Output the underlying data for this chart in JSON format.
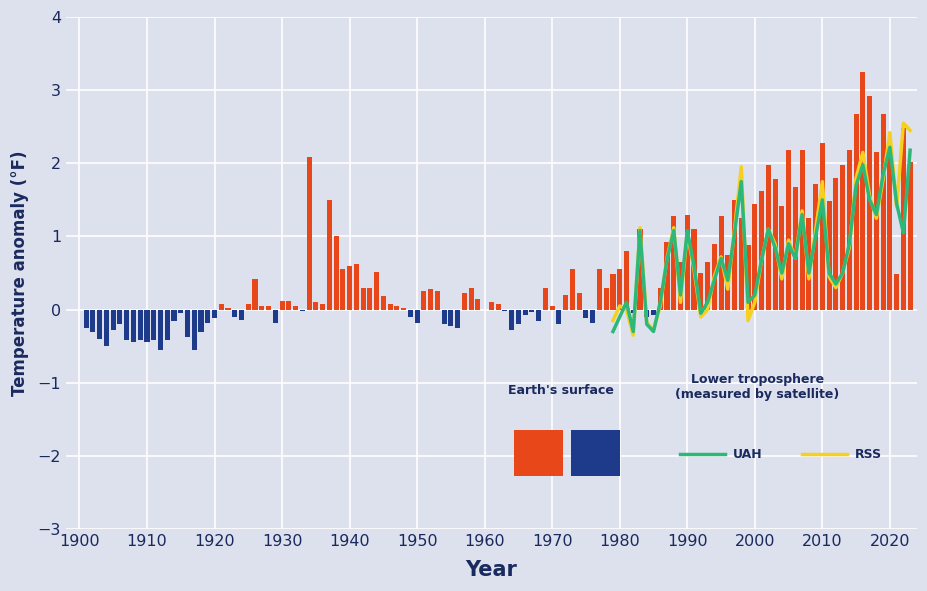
{
  "xlabel": "Year",
  "ylabel": "Temperature anomaly (°F)",
  "bg_color": "#dde1ed",
  "grid_color": "#ffffff",
  "text_color": "#1a2a5e",
  "ylim": [
    -3,
    4
  ],
  "yticks": [
    -3,
    -2,
    -1,
    0,
    1,
    2,
    3,
    4
  ],
  "xlim": [
    1898,
    2024
  ],
  "xticks": [
    1900,
    1910,
    1920,
    1930,
    1940,
    1950,
    1960,
    1970,
    1980,
    1990,
    2000,
    2010,
    2020
  ],
  "surface_years": [
    1901,
    1902,
    1903,
    1904,
    1905,
    1906,
    1907,
    1908,
    1909,
    1910,
    1911,
    1912,
    1913,
    1914,
    1915,
    1916,
    1917,
    1918,
    1919,
    1920,
    1921,
    1922,
    1923,
    1924,
    1925,
    1926,
    1927,
    1928,
    1929,
    1930,
    1931,
    1932,
    1933,
    1934,
    1935,
    1936,
    1937,
    1938,
    1939,
    1940,
    1941,
    1942,
    1943,
    1944,
    1945,
    1946,
    1947,
    1948,
    1949,
    1950,
    1951,
    1952,
    1953,
    1954,
    1955,
    1956,
    1957,
    1958,
    1959,
    1960,
    1961,
    1962,
    1963,
    1964,
    1965,
    1966,
    1967,
    1968,
    1969,
    1970,
    1971,
    1972,
    1973,
    1974,
    1975,
    1976,
    1977,
    1978,
    1979,
    1980,
    1981,
    1982,
    1983,
    1984,
    1985,
    1986,
    1987,
    1988,
    1989,
    1990,
    1991,
    1992,
    1993,
    1994,
    1995,
    1996,
    1997,
    1998,
    1999,
    2000,
    2001,
    2002,
    2003,
    2004,
    2005,
    2006,
    2007,
    2008,
    2009,
    2010,
    2011,
    2012,
    2013,
    2014,
    2015,
    2016,
    2017,
    2018,
    2019,
    2020,
    2021,
    2022,
    2023
  ],
  "surface_values": [
    -0.25,
    -0.3,
    -0.4,
    -0.5,
    -0.28,
    -0.2,
    -0.42,
    -0.45,
    -0.42,
    -0.45,
    -0.42,
    -0.55,
    -0.42,
    -0.15,
    -0.05,
    -0.38,
    -0.55,
    -0.3,
    -0.18,
    -0.12,
    0.08,
    0.02,
    -0.1,
    -0.14,
    0.07,
    0.42,
    0.05,
    0.05,
    -0.18,
    0.12,
    0.12,
    0.05,
    -0.02,
    2.08,
    0.1,
    0.08,
    1.5,
    1.0,
    0.55,
    0.6,
    0.62,
    0.3,
    0.3,
    0.52,
    0.18,
    0.08,
    0.05,
    0.02,
    -0.1,
    -0.18,
    0.25,
    0.28,
    0.26,
    -0.2,
    -0.22,
    -0.25,
    0.22,
    0.3,
    0.15,
    0.0,
    0.1,
    0.07,
    -0.02,
    -0.28,
    -0.2,
    -0.08,
    -0.04,
    -0.15,
    0.3,
    0.05,
    -0.2,
    0.2,
    0.55,
    0.22,
    -0.12,
    -0.18,
    0.55,
    0.3,
    0.48,
    0.55,
    0.8,
    -0.05,
    1.1,
    -0.1,
    -0.08,
    0.3,
    0.92,
    1.28,
    0.65,
    1.3,
    1.1,
    0.5,
    0.65,
    0.9,
    1.28,
    0.75,
    1.5,
    1.25,
    0.88,
    1.45,
    1.62,
    1.98,
    1.78,
    1.42,
    2.18,
    1.68,
    2.18,
    1.25,
    1.72,
    2.28,
    1.48,
    1.8,
    1.98,
    2.18,
    2.68,
    3.25,
    2.92,
    2.15,
    2.68,
    2.08,
    0.48,
    2.48,
    2.02
  ],
  "uah_years": [
    1979,
    1980,
    1981,
    1982,
    1983,
    1984,
    1985,
    1986,
    1987,
    1988,
    1989,
    1990,
    1991,
    1992,
    1993,
    1994,
    1995,
    1996,
    1997,
    1998,
    1999,
    2000,
    2001,
    2002,
    2003,
    2004,
    2005,
    2006,
    2007,
    2008,
    2009,
    2010,
    2011,
    2012,
    2013,
    2014,
    2015,
    2016,
    2017,
    2018,
    2019,
    2020,
    2021,
    2022,
    2023
  ],
  "uah_values": [
    -0.3,
    -0.1,
    0.1,
    -0.3,
    1.08,
    -0.2,
    -0.3,
    0.1,
    0.68,
    1.08,
    0.2,
    1.08,
    0.6,
    -0.05,
    0.1,
    0.4,
    0.7,
    0.4,
    1.05,
    1.75,
    0.1,
    0.2,
    0.68,
    1.1,
    0.85,
    0.5,
    0.9,
    0.7,
    1.3,
    0.5,
    1.0,
    1.5,
    0.5,
    0.35,
    0.5,
    0.9,
    1.7,
    1.98,
    1.5,
    1.3,
    1.85,
    2.22,
    1.45,
    1.05,
    2.18
  ],
  "rss_years": [
    1979,
    1980,
    1981,
    1982,
    1983,
    1984,
    1985,
    1986,
    1987,
    1988,
    1989,
    1990,
    1991,
    1992,
    1993,
    1994,
    1995,
    1996,
    1997,
    1998,
    1999,
    2000,
    2001,
    2002,
    2003,
    2004,
    2005,
    2006,
    2007,
    2008,
    2009,
    2010,
    2011,
    2012,
    2013,
    2014,
    2015,
    2016,
    2017,
    2018,
    2019,
    2020,
    2021,
    2022,
    2023
  ],
  "rss_values": [
    -0.15,
    0.05,
    0.0,
    -0.35,
    1.12,
    -0.18,
    -0.28,
    0.05,
    0.7,
    1.12,
    0.1,
    1.05,
    0.55,
    -0.1,
    0.0,
    0.45,
    0.72,
    0.28,
    1.1,
    1.95,
    -0.15,
    0.1,
    0.68,
    1.1,
    0.9,
    0.42,
    0.95,
    0.7,
    1.35,
    0.42,
    1.08,
    1.75,
    0.45,
    0.3,
    0.5,
    0.85,
    1.8,
    2.15,
    1.55,
    1.25,
    1.78,
    2.42,
    1.4,
    2.55,
    2.45
  ],
  "bar_color_pos": "#e8471a",
  "bar_color_neg": "#1e3a8a",
  "uah_color": "#2db87a",
  "rss_color": "#f5d020"
}
